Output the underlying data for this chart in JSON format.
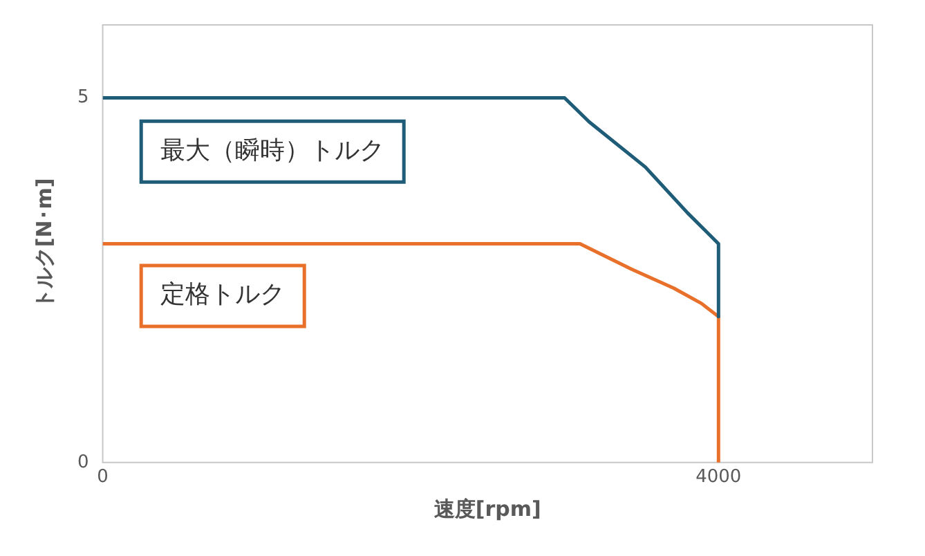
{
  "chart_data": {
    "type": "line",
    "xlabel": "速度[rpm]",
    "ylabel": "トルク[N･m]",
    "xlim": [
      0,
      5000
    ],
    "ylim": [
      0,
      6
    ],
    "xticks": [
      0,
      4000
    ],
    "yticks": [
      0,
      5
    ],
    "grid": false,
    "legend": false,
    "marker": "none",
    "line_style": "solid",
    "series": [
      {
        "name": "最大（瞬時）トルク",
        "color": "#1f5c78",
        "x": [
          0,
          3000,
          3160,
          3525,
          3800,
          4000,
          4000
        ],
        "values": [
          5,
          5,
          4.67,
          4.05,
          3.42,
          3.0,
          2.0
        ]
      },
      {
        "name": "定格トルク",
        "color": "#e8702a",
        "x": [
          0,
          3100,
          3435,
          3710,
          3890,
          4000,
          4000
        ],
        "values": [
          3,
          3,
          2.65,
          2.39,
          2.18,
          2.0,
          0
        ]
      }
    ]
  }
}
